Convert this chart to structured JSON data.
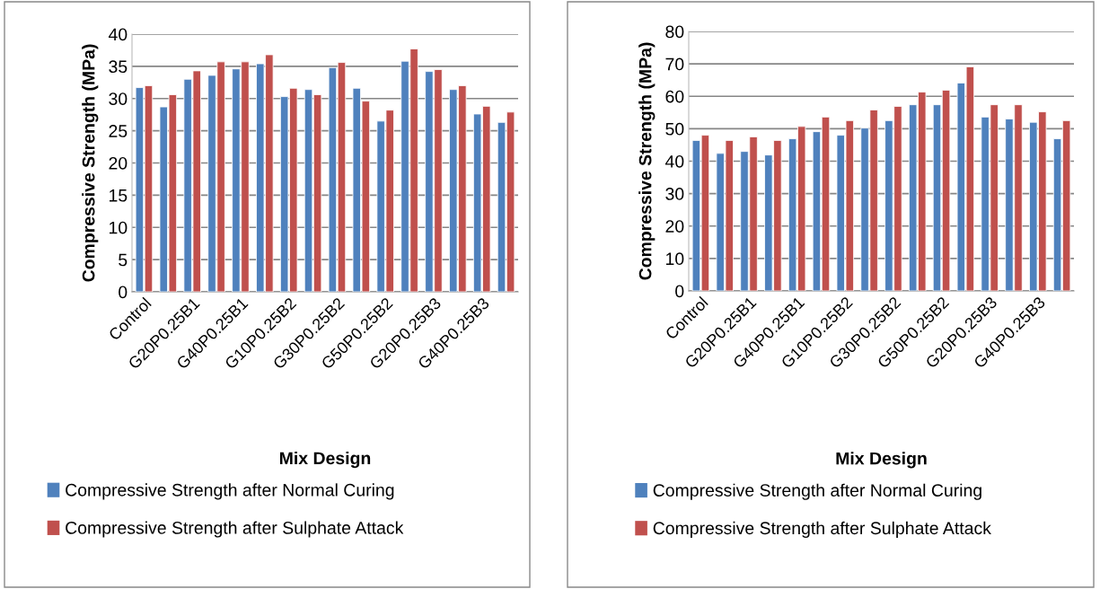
{
  "chart_data": [
    {
      "type": "bar",
      "xlabel": "Mix Design",
      "ylabel": "Compressive Strength (MPa)",
      "categories": [
        "Control",
        null,
        "G20P0.25B1",
        null,
        "G40P0.25B1",
        null,
        "G10P0.25B2",
        null,
        "G30P0.25B2",
        null,
        "G50P0.25B2",
        null,
        "G20P0.25B3",
        null,
        "G40P0.25B3",
        null
      ],
      "series": [
        {
          "name": "Compressive Strength after Normal Curing",
          "color": "#4f81bd",
          "values": [
            31.7,
            28.7,
            33.0,
            33.6,
            34.6,
            35.4,
            30.3,
            31.4,
            34.8,
            31.6,
            26.5,
            35.8,
            34.2,
            31.4,
            27.6,
            26.3
          ]
        },
        {
          "name": "Compressive Strength after Sulphate Attack",
          "color": "#c0504d",
          "values": [
            32.0,
            30.6,
            34.3,
            35.7,
            35.7,
            36.8,
            31.6,
            30.6,
            35.6,
            29.6,
            28.2,
            37.7,
            34.5,
            32.0,
            28.8,
            27.9
          ]
        }
      ],
      "ylim": [
        0,
        40
      ],
      "yticks": [
        0,
        5,
        10,
        15,
        20,
        25,
        30,
        35,
        40
      ],
      "grid": "y",
      "legend": "bottom"
    },
    {
      "type": "bar",
      "xlabel": "Mix Design",
      "ylabel": "Compressive Strength (MPa)",
      "categories": [
        "Control",
        null,
        "G20P0.25B1",
        null,
        "G40P0.25B1",
        null,
        "G10P0.25B2",
        null,
        "G30P0.25B2",
        null,
        "G50P0.25B2",
        null,
        "G20P0.25B3",
        null,
        "G40P0.25B3",
        null
      ],
      "series": [
        {
          "name": "Compressive Strength after Normal Curing",
          "color": "#4f81bd",
          "values": [
            46.4,
            42.4,
            43.0,
            41.9,
            46.9,
            49.1,
            48.0,
            50.2,
            52.5,
            57.4,
            57.4,
            64.1,
            53.6,
            53.0,
            52.0,
            46.9
          ]
        },
        {
          "name": "Compressive Strength after Sulphate Attack",
          "color": "#c0504d",
          "values": [
            48.0,
            46.4,
            47.5,
            46.4,
            50.7,
            53.6,
            52.5,
            55.8,
            56.9,
            61.3,
            61.9,
            69.1,
            57.4,
            57.4,
            55.2,
            52.5
          ]
        }
      ],
      "ylim": [
        0,
        80
      ],
      "yticks": [
        0,
        10,
        20,
        30,
        40,
        50,
        60,
        70,
        80
      ],
      "grid": "y",
      "legend": "bottom"
    }
  ]
}
